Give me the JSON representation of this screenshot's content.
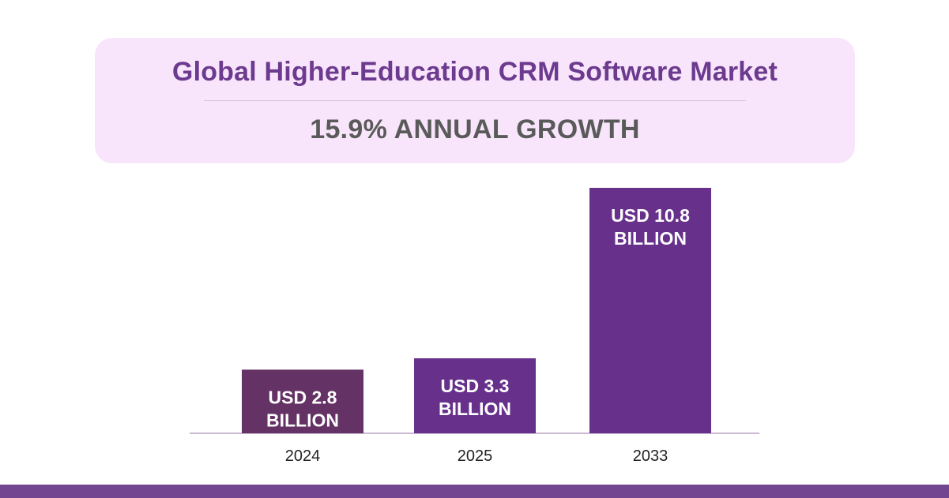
{
  "header": {
    "title": "Global Higher-Education CRM Software Market",
    "subtitle": "15.9% ANNUAL GROWTH"
  },
  "chart_data": {
    "type": "bar",
    "title": "Global Higher-Education CRM Software Market",
    "subtitle": "15.9% ANNUAL GROWTH",
    "categories": [
      "2024",
      "2025",
      "2033"
    ],
    "values": [
      2.8,
      3.3,
      10.8
    ],
    "data_labels": [
      [
        "USD 2.8",
        "BILLION"
      ],
      [
        "USD 3.3",
        "BILLION"
      ],
      [
        "USD 10.8",
        "BILLION"
      ]
    ],
    "unit": "USD billion",
    "xlabel": "",
    "ylabel": "",
    "ylim": [
      0,
      10.8
    ],
    "grid": false,
    "legend": "none",
    "colors": {
      "bar_first": "#643264",
      "bar_rest": "#66308b",
      "axis": "#b8a3c6",
      "tick_text": "#222222",
      "label_text": "#ffffff"
    }
  },
  "colors": {
    "header_bg": "#f8e5fb",
    "title": "#6c3a8e",
    "subtitle": "#5a5a5a",
    "footer": "#734590"
  }
}
